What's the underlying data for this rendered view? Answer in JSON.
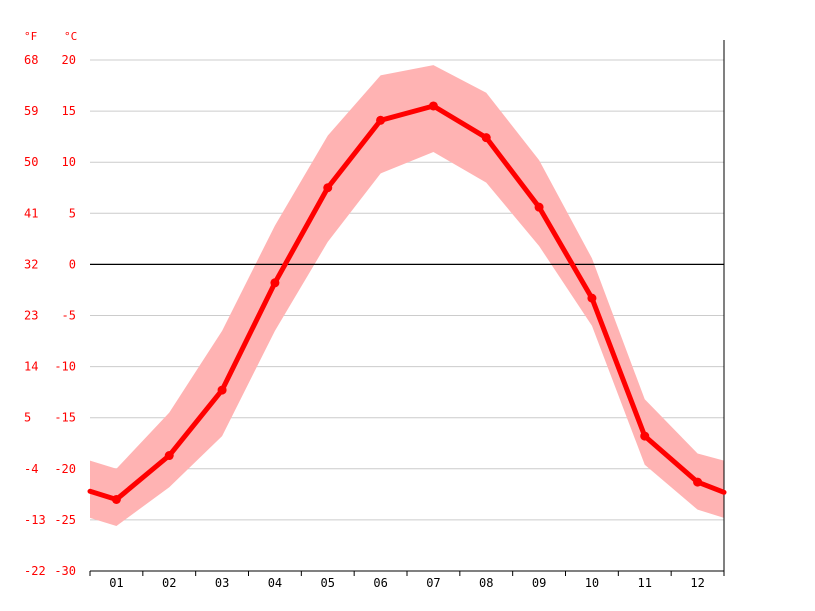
{
  "chart_data": {
    "type": "line",
    "units": {
      "left": "°F",
      "right": "°C"
    },
    "x": [
      "01",
      "02",
      "03",
      "04",
      "05",
      "06",
      "07",
      "08",
      "09",
      "10",
      "11",
      "12"
    ],
    "ylim": [
      -30,
      20
    ],
    "y_ticks_c": [
      "20",
      "15",
      "10",
      "5",
      "0",
      "-5",
      "-10",
      "-15",
      "-20",
      "-25",
      "-30"
    ],
    "y_ticks_f": [
      "68",
      "59",
      "50",
      "41",
      "32",
      "23",
      "14",
      "5",
      "-4",
      "-13",
      "-22"
    ],
    "series": [
      {
        "values": [
          -23.0,
          -18.7,
          -12.3,
          -1.8,
          7.5,
          14.1,
          15.5,
          12.4,
          5.6,
          -3.3,
          -16.8,
          -21.3
        ]
      }
    ],
    "band": {
      "upper": [
        -20.0,
        -14.5,
        -6.5,
        3.8,
        12.6,
        18.5,
        19.5,
        16.8,
        10.2,
        0.6,
        -13.2,
        -18.5
      ],
      "lower": [
        -25.6,
        -21.8,
        -16.8,
        -6.5,
        2.2,
        8.9,
        11.0,
        8.0,
        1.8,
        -6.0,
        -19.6,
        -24.0
      ]
    },
    "edge_values": {
      "left": -22.2,
      "right": -22.3
    },
    "edge_band": {
      "left": [
        -19.2,
        -24.8
      ],
      "right": [
        -19.2,
        -24.8
      ]
    },
    "colors": {
      "line": "#ff0000",
      "band": "#ffb3b3",
      "grid": "#cccccc",
      "zero_line": "#000000",
      "tick_text": "#ff0000"
    },
    "grid": true,
    "legend": "none"
  }
}
